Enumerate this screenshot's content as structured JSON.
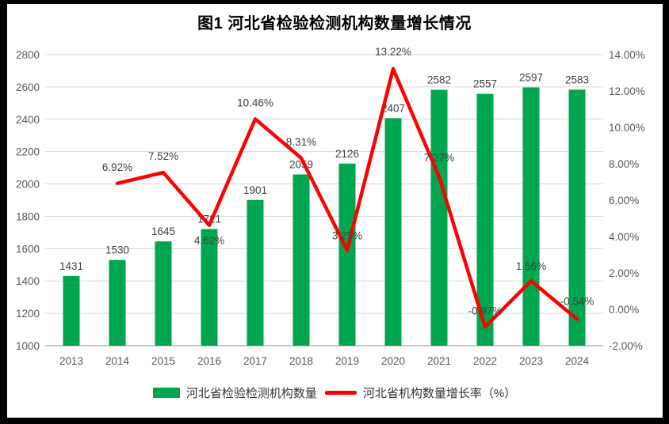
{
  "title": "图1  河北省检验检测机构数量增长情况",
  "legend": {
    "items": [
      {
        "label": "河北省检验检测机构数量",
        "type": "bar",
        "color": "#00A550"
      },
      {
        "label": "河北省机构数量增长率（%）",
        "type": "line",
        "color": "#FF0000"
      }
    ]
  },
  "chart_data": {
    "type": "combo-bar-line",
    "title": "图1  河北省检验检测机构数量增长情况",
    "categories": [
      "2013",
      "2014",
      "2015",
      "2016",
      "2017",
      "2018",
      "2019",
      "2020",
      "2021",
      "2022",
      "2023",
      "2024"
    ],
    "series": [
      {
        "name": "河北省检验检测机构数量",
        "type": "bar",
        "axis": "left",
        "color": "#00A550",
        "values": [
          1431,
          1530,
          1645,
          1721,
          1901,
          2059,
          2126,
          2407,
          2582,
          2557,
          2597,
          2583
        ],
        "labels": [
          "1431",
          "1530",
          "1645",
          "1721",
          "1901",
          "2059",
          "2126",
          "2407",
          "2582",
          "2557",
          "2597",
          "2583"
        ]
      },
      {
        "name": "河北省机构数量增长率（%）",
        "type": "line",
        "axis": "right",
        "color": "#FF0000",
        "values": [
          null,
          6.92,
          7.52,
          4.62,
          10.46,
          8.31,
          3.25,
          13.22,
          7.27,
          -0.97,
          1.56,
          -0.54
        ],
        "labels": [
          "",
          "6.92%",
          "7.52%",
          "4.62%",
          "10.46%",
          "8.31%",
          "3.25%",
          "13.22%",
          "7.27%",
          "-0.97%",
          "1.56%",
          "-0.54%"
        ]
      }
    ],
    "left_axis": {
      "min": 1000,
      "max": 2800,
      "step": 200,
      "ticks": [
        "1000",
        "1200",
        "1400",
        "1600",
        "1800",
        "2000",
        "2200",
        "2400",
        "2600",
        "2800"
      ]
    },
    "right_axis": {
      "min": -2,
      "max": 14,
      "step": 2,
      "ticks": [
        "-2.00%",
        "0.00%",
        "2.00%",
        "4.00%",
        "6.00%",
        "8.00%",
        "10.00%",
        "12.00%",
        "14.00%"
      ]
    },
    "grid": true,
    "legend_position": "bottom",
    "line_label_dy": [
      0,
      -16,
      -16,
      24,
      -16,
      -16,
      -14,
      -17,
      -20,
      -16,
      -14,
      -18
    ],
    "colors": {
      "grid": "#D9D9D9",
      "axis_line": "#A6A6A6",
      "tick_text": "#595959",
      "data_label": "#404040"
    }
  }
}
